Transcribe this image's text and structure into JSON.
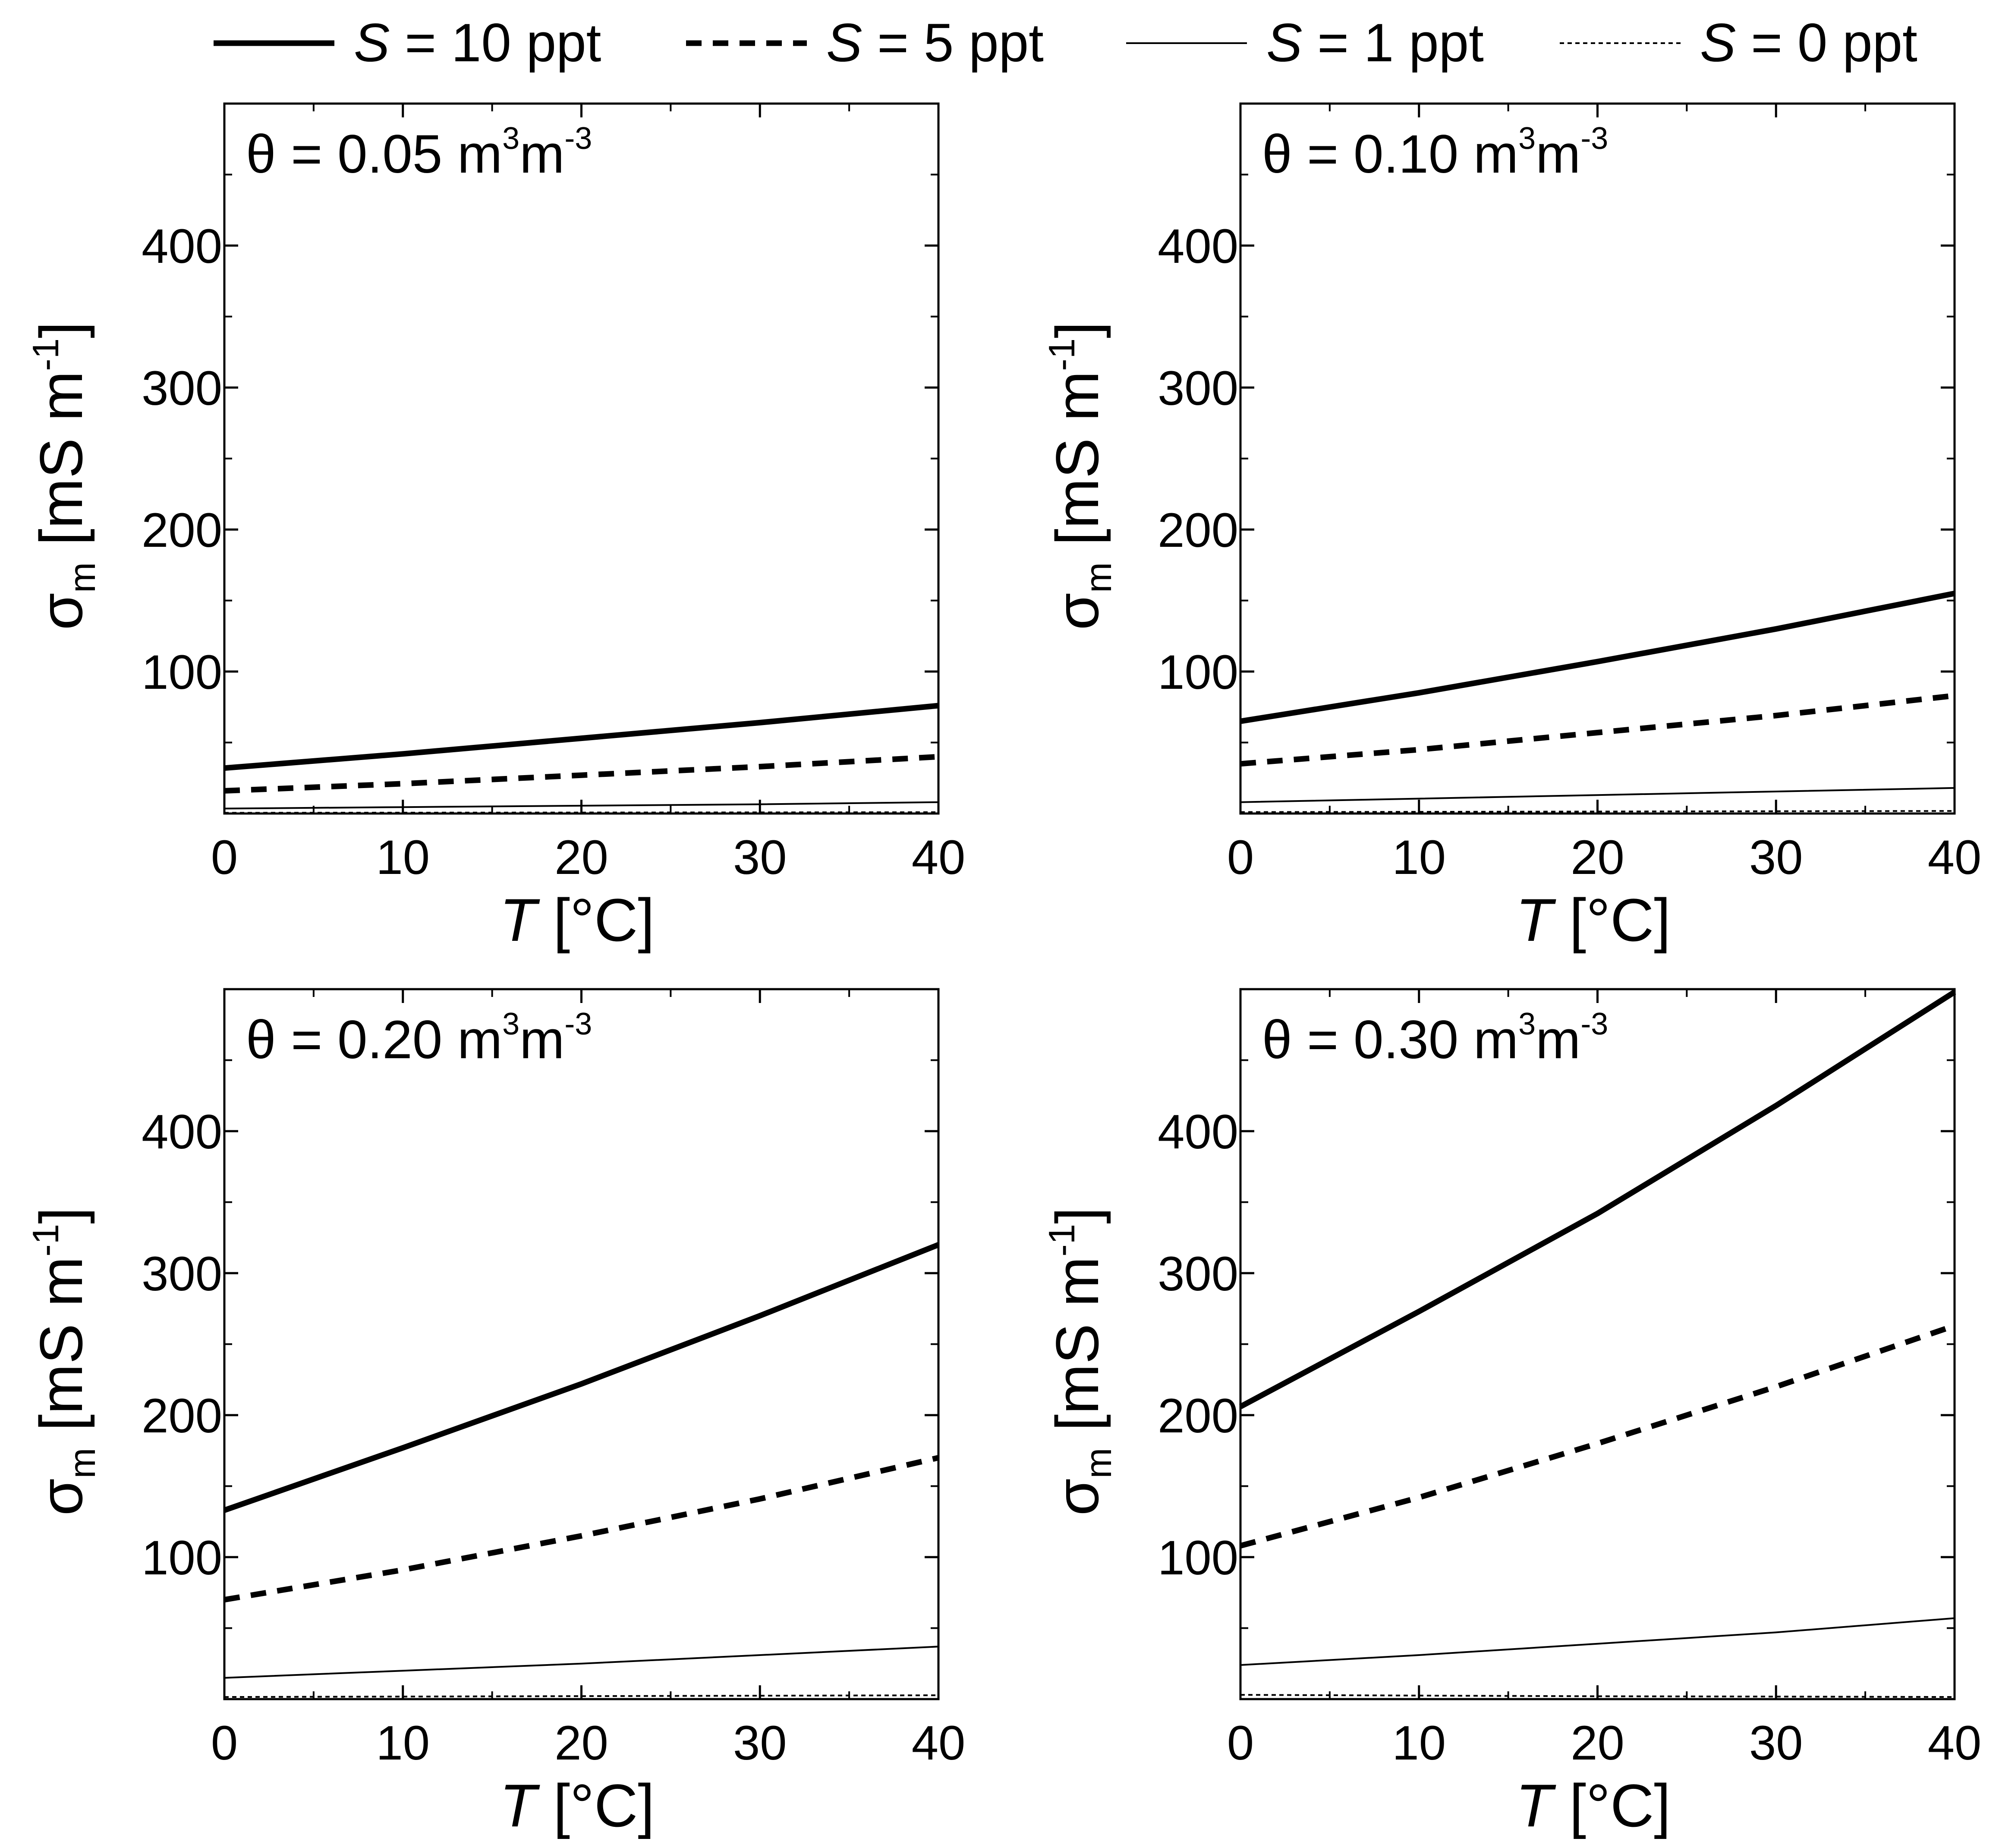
{
  "legend": {
    "placement": "top",
    "entries": [
      {
        "var": "S",
        "rest": " = 10 ppt",
        "style": "thick-solid"
      },
      {
        "var": "S",
        "rest": " = 5 ppt",
        "style": "thick-dashed"
      },
      {
        "var": "S",
        "rest": " = 1 ppt",
        "style": "thin-solid"
      },
      {
        "var": "S",
        "rest": " = 0 ppt",
        "style": "thin-dotted"
      }
    ]
  },
  "chart_data": [
    {
      "type": "line",
      "title": "θ = 0.05 m³m⁻³",
      "title_parts": {
        "theta": "θ",
        "eq": " = 0.05 m",
        "sup1": "3",
        "mid": "m",
        "sup2": "-3"
      },
      "xlabel": {
        "var": "T",
        "rest": " [°C]"
      },
      "ylabel": {
        "sym": "σ",
        "sub": "m",
        "rest": " [mS m",
        "sup": "-1",
        "end": "]"
      },
      "xlim": [
        0,
        40
      ],
      "ylim": [
        0,
        500
      ],
      "x_ticks": [
        "0",
        "10",
        "20",
        "30",
        "40"
      ],
      "y_ticks": [
        "100",
        "200",
        "300",
        "400"
      ],
      "x": [
        0,
        10,
        20,
        30,
        40
      ],
      "series": [
        {
          "name": "S = 10 ppt",
          "style": "thick-solid",
          "values": [
            32,
            42,
            53,
            64,
            76
          ]
        },
        {
          "name": "S = 5 ppt",
          "style": "thick-dashed",
          "values": [
            16,
            21,
            27,
            33,
            40
          ]
        },
        {
          "name": "S = 1 ppt",
          "style": "thin-solid",
          "values": [
            3.5,
            4.5,
            5.5,
            6.5,
            8
          ]
        },
        {
          "name": "S = 0 ppt",
          "style": "thin-dotted",
          "values": [
            0.5,
            0.6,
            0.7,
            0.8,
            0.9
          ]
        }
      ]
    },
    {
      "type": "line",
      "title": "θ = 0.10 m³m⁻³",
      "title_parts": {
        "theta": "θ",
        "eq": " = 0.10 m",
        "sup1": "3",
        "mid": "m",
        "sup2": "-3"
      },
      "xlabel": {
        "var": "T",
        "rest": " [°C]"
      },
      "ylabel": {
        "sym": "σ",
        "sub": "m",
        "rest": " [mS m",
        "sup": "-1",
        "end": "]"
      },
      "xlim": [
        0,
        40
      ],
      "ylim": [
        0,
        500
      ],
      "x_ticks": [
        "0",
        "10",
        "20",
        "30",
        "40"
      ],
      "y_ticks": [
        "100",
        "200",
        "300",
        "400"
      ],
      "x": [
        0,
        10,
        20,
        30,
        40
      ],
      "series": [
        {
          "name": "S = 10 ppt",
          "style": "thick-solid",
          "values": [
            65,
            85,
            107,
            130,
            155
          ]
        },
        {
          "name": "S = 5 ppt",
          "style": "thick-dashed",
          "values": [
            35,
            45,
            57,
            69,
            83
          ]
        },
        {
          "name": "S = 1 ppt",
          "style": "thin-solid",
          "values": [
            8,
            10.5,
            13,
            15.5,
            18
          ]
        },
        {
          "name": "S = 0 ppt",
          "style": "thin-dotted",
          "values": [
            1,
            1.2,
            1.4,
            1.6,
            1.8
          ]
        }
      ]
    },
    {
      "type": "line",
      "title": "θ = 0.20 m³m⁻³",
      "title_parts": {
        "theta": "θ",
        "eq": " = 0.20 m",
        "sup1": "3",
        "mid": "m",
        "sup2": "-3"
      },
      "xlabel": {
        "var": "T",
        "rest": " [°C]"
      },
      "ylabel": {
        "sym": "σ",
        "sub": "m",
        "rest": " [mS m",
        "sup": "-1",
        "end": "]"
      },
      "xlim": [
        0,
        40
      ],
      "ylim": [
        0,
        500
      ],
      "x_ticks": [
        "0",
        "10",
        "20",
        "30",
        "40"
      ],
      "y_ticks": [
        "100",
        "200",
        "300",
        "400"
      ],
      "x": [
        0,
        10,
        20,
        30,
        40
      ],
      "series": [
        {
          "name": "S = 10 ppt",
          "style": "thick-solid",
          "values": [
            133,
            177,
            222,
            270,
            320
          ]
        },
        {
          "name": "S = 5 ppt",
          "style": "thick-dashed",
          "values": [
            70,
            91,
            115,
            141,
            170
          ]
        },
        {
          "name": "S = 1 ppt",
          "style": "thin-solid",
          "values": [
            15,
            20,
            25,
            31,
            37
          ]
        },
        {
          "name": "S = 0 ppt",
          "style": "thin-dotted",
          "values": [
            1.5,
            1.8,
            2.1,
            2.4,
            2.7
          ]
        }
      ]
    },
    {
      "type": "line",
      "title": "θ = 0.30 m³m⁻³",
      "title_parts": {
        "theta": "θ",
        "eq": " = 0.30 m",
        "sup1": "3",
        "mid": "m",
        "sup2": "-3"
      },
      "xlabel": {
        "var": "T",
        "rest": " [°C]"
      },
      "ylabel": {
        "sym": "σ",
        "sub": "m",
        "rest": " [mS m",
        "sup": "-1",
        "end": "]"
      },
      "xlim": [
        0,
        40
      ],
      "ylim": [
        0,
        500
      ],
      "x_ticks": [
        "0",
        "10",
        "20",
        "30",
        "40"
      ],
      "y_ticks": [
        "100",
        "200",
        "300",
        "400"
      ],
      "x": [
        0,
        10,
        20,
        30,
        40
      ],
      "series": [
        {
          "name": "S = 10 ppt",
          "style": "thick-solid",
          "values": [
            206,
            273,
            342,
            418,
            498
          ]
        },
        {
          "name": "S = 5 ppt",
          "style": "thick-dashed",
          "values": [
            108,
            142,
            180,
            220,
            263
          ]
        },
        {
          "name": "S = 1 ppt",
          "style": "thin-solid",
          "values": [
            24,
            31,
            39,
            47,
            57
          ]
        },
        {
          "name": "S = 0 ppt",
          "style": "thin-dotted",
          "values": [
            3,
            2.5,
            2,
            1.8,
            1.5
          ]
        }
      ]
    }
  ]
}
